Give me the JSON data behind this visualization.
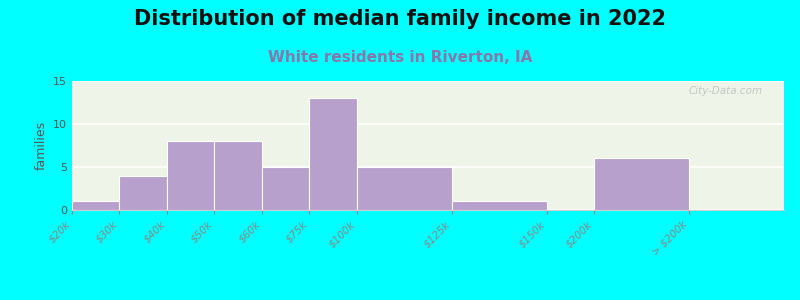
{
  "title": "Distribution of median family income in 2022",
  "subtitle": "White residents in Riverton, IA",
  "bin_edges": [
    0,
    1,
    2,
    3,
    4,
    5,
    6,
    8,
    10,
    11,
    13,
    15
  ],
  "tick_labels": [
    "$20k",
    "$30k",
    "$40k",
    "$50k",
    "$60k",
    "$75k",
    "$100k",
    "$125k",
    "$150k",
    "$200k",
    "> $200k",
    ""
  ],
  "values": [
    1,
    4,
    8,
    8,
    5,
    13,
    5,
    1,
    0,
    6,
    0
  ],
  "bar_color": "#b8a0cc",
  "background_color": "#00ffff",
  "plot_bg_color": "#eef4e8",
  "title_fontsize": 15,
  "subtitle_fontsize": 11,
  "subtitle_color": "#8877aa",
  "ylabel": "families",
  "ylim": [
    0,
    15
  ],
  "yticks": [
    0,
    5,
    10,
    15
  ],
  "watermark": "City-Data.com"
}
